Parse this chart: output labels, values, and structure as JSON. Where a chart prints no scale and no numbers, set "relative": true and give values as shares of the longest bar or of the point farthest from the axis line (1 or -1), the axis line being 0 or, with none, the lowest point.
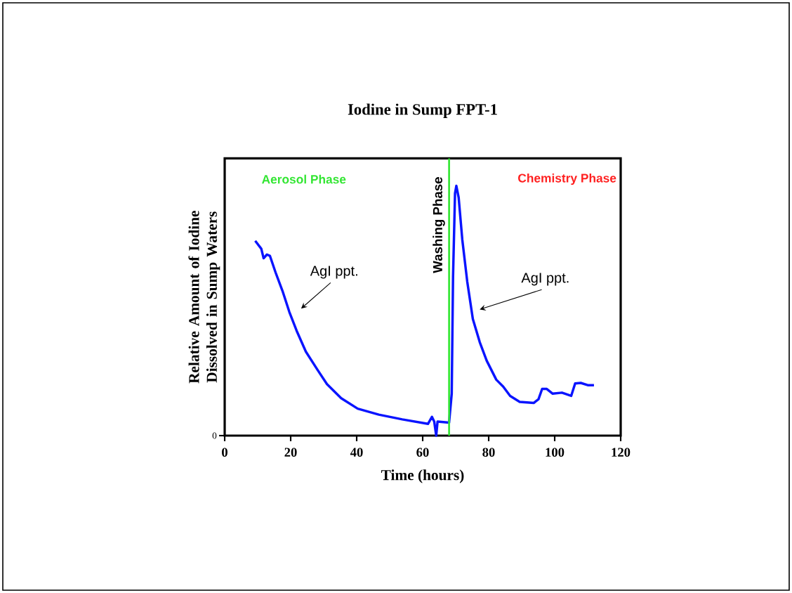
{
  "chart_data": {
    "type": "line",
    "title": "Iodine in Sump FPT-1",
    "xlabel": "Time (hours)",
    "ylabel": "Relative Amount of Iodine Dissolved in Sump Waters",
    "relative": true,
    "xlim": [
      0,
      120
    ],
    "xticks": [
      0,
      20,
      40,
      60,
      80,
      100,
      120
    ],
    "marker": "none",
    "line_style": "solid",
    "series": [
      {
        "color": "#0a14ff",
        "x": [
          9.25,
          11.1,
          11.8,
          12.8,
          13.7,
          15.4,
          17.5,
          19.6,
          21.8,
          24.6,
          28.2,
          31,
          35.3,
          40.3,
          46.7,
          53.8,
          61.6,
          62.8,
          63.5,
          64.1,
          64.5,
          68,
          68.8,
          69.2,
          69.8,
          70.2,
          70.9,
          72,
          73.5,
          75.2,
          77.3,
          79.4,
          82.3,
          84.4,
          86.5,
          89.4,
          93.7,
          95.1,
          96.2,
          97.6,
          99.4,
          102.2,
          105,
          106.2,
          107.9,
          110,
          111.9
        ],
        "values": [
          0.78,
          0.748,
          0.71,
          0.725,
          0.72,
          0.654,
          0.58,
          0.495,
          0.42,
          0.336,
          0.262,
          0.206,
          0.15,
          0.108,
          0.084,
          0.065,
          0.047,
          0.075,
          0.056,
          0,
          0.056,
          0.052,
          0.168,
          0.636,
          0.97,
          1,
          0.953,
          0.785,
          0.617,
          0.467,
          0.374,
          0.3,
          0.224,
          0.196,
          0.159,
          0.135,
          0.131,
          0.146,
          0.187,
          0.187,
          0.168,
          0.172,
          0.159,
          0.209,
          0.211,
          0.202,
          0.202
        ]
      }
    ],
    "ref_lines": [
      {
        "axis": "x",
        "value": 68,
        "label": "Washing Phase",
        "color": "#33e633"
      }
    ],
    "annotations": [
      "0",
      "Aerosol Phase",
      "Chemistry Phase",
      "AgI ppt.",
      "AgI ppt."
    ]
  }
}
